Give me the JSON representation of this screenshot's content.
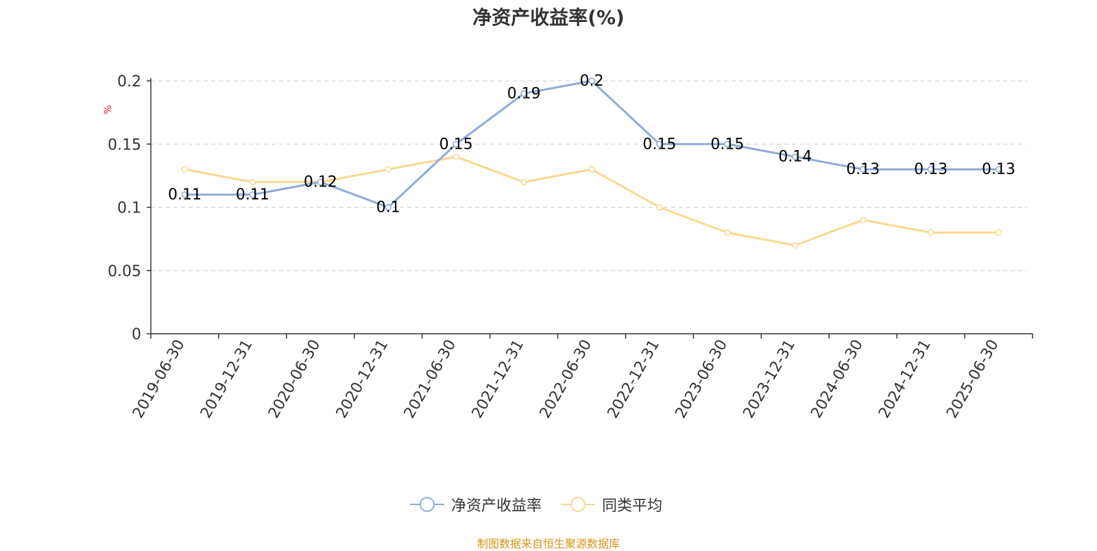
{
  "chart_data": {
    "type": "line",
    "title": "净资产收益率(%)",
    "ylabel": "%",
    "xlabel": "",
    "categories": [
      "2019-06-30",
      "2019-12-31",
      "2020-06-30",
      "2020-12-31",
      "2021-06-30",
      "2021-12-31",
      "2022-06-30",
      "2022-12-31",
      "2023-06-30",
      "2023-12-31",
      "2024-06-30",
      "2024-12-31",
      "2025-06-30"
    ],
    "yticks": [
      "0",
      "0.05",
      "0.1",
      "0.15",
      "0.2"
    ],
    "ylim": [
      0,
      0.2
    ],
    "grid": true,
    "legend_position": "bottom-center",
    "series": [
      {
        "name": "净资产收益率",
        "color": "#8eaad8",
        "values": [
          0.11,
          0.11,
          0.12,
          0.1,
          0.15,
          0.19,
          0.2,
          0.15,
          0.15,
          0.14,
          0.13,
          0.13,
          0.13
        ],
        "labels": [
          "0.11",
          "0.11",
          "0.12",
          "0.1",
          "0.15",
          "0.19",
          "0.2",
          "0.15",
          "0.15",
          "0.14",
          "0.13",
          "0.13",
          "0.13"
        ]
      },
      {
        "name": "同类平均",
        "color": "#fbd78f",
        "values": [
          0.13,
          0.12,
          0.12,
          0.13,
          0.14,
          0.12,
          0.13,
          0.1,
          0.08,
          0.07,
          0.09,
          0.08,
          0.08
        ]
      }
    ],
    "source_note": "制图数据来自恒生聚源数据库"
  }
}
